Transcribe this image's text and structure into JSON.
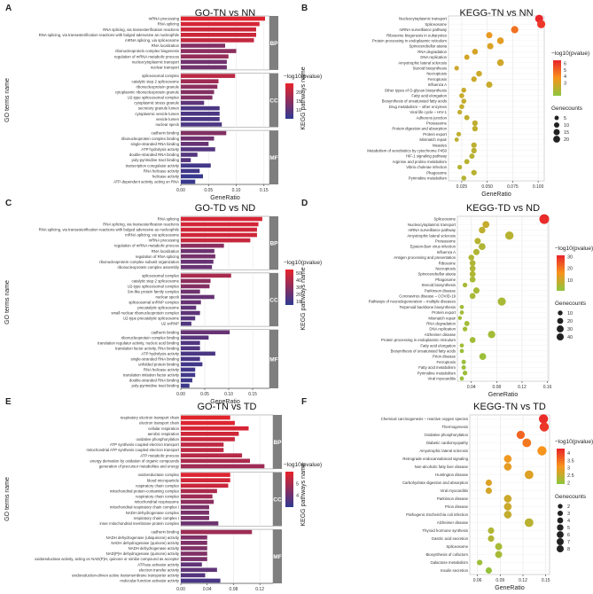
{
  "colors": {
    "bar_high": "#e8232a",
    "bar_low": "#2f3a93",
    "dot_high": "#e8232a",
    "dot_mid": "#f7941d",
    "dot_low": "#8dc63f",
    "strip": "#7f7f7f",
    "grid": "#e6e6e6"
  },
  "chart_data": [
    {
      "panel": "A",
      "type": "bar",
      "title": "GO-TN vs NN",
      "xlabel": "GeneRatio",
      "ylabel": "GO terms name",
      "legend_title": "−log10(pvalue)",
      "xlim": [
        0,
        0.16
      ],
      "xticks": [
        "0.00",
        "0.05",
        "0.10",
        "0.15"
      ],
      "color_range": [
        5,
        25
      ],
      "legend_ticks": [
        10,
        15,
        20
      ],
      "groups": [
        {
          "name": "BP",
          "categories": [
            "mRNA processing",
            "RNA splicing",
            "RNA splicing, via transesterification reactions",
            "RNA splicing, via transesterification reactions with bulged adenosine as nucleophile",
            "mRNA splicing, via spliceosome",
            "RNA localization",
            "ribonucleoprotein complex biogenesis",
            "regulation of mRNA metabolic process",
            "nucleocytoplasmic transport",
            "nuclear transport"
          ],
          "values": [
            0.152,
            0.142,
            0.136,
            0.136,
            0.132,
            0.08,
            0.1,
            0.086,
            0.083,
            0.083
          ],
          "pvalues": [
            24,
            23,
            22,
            22,
            21,
            14,
            15,
            16,
            12,
            12
          ]
        },
        {
          "name": "CC",
          "categories": [
            "spliceosomal complex",
            "catalytic step 2 spliceosome",
            "ribonucleoprotein granule",
            "cytoplasmic ribonucleoprotein granule",
            "U2-type spliceosomal complex",
            "cytoplasmic stress granule",
            "secretory granule lumen",
            "cytoplasmic vesicle lumen",
            "vesicle lumen",
            "nuclear speck"
          ],
          "values": [
            0.098,
            0.068,
            0.066,
            0.06,
            0.057,
            0.042,
            0.07,
            0.07,
            0.07,
            0.074
          ],
          "pvalues": [
            20,
            17,
            15,
            14,
            14,
            10,
            8,
            8,
            8,
            8
          ]
        },
        {
          "name": "MF",
          "categories": [
            "cadherin binding",
            "ribonucleoprotein complex binding",
            "single-stranded RNA binding",
            "ATP hydrolysis activity",
            "double-stranded RNA binding",
            "poly-pyrimidine tract binding",
            "transcription coregulator activity",
            "RNA helicase activity",
            "helicase activity",
            "ATP-dependent activity, acting on RNA"
          ],
          "values": [
            0.082,
            0.06,
            0.05,
            0.062,
            0.03,
            0.018,
            0.054,
            0.034,
            0.04,
            0.026
          ],
          "pvalues": [
            14,
            12,
            11,
            9,
            9,
            9,
            7,
            7,
            6,
            6
          ]
        }
      ]
    },
    {
      "panel": "B",
      "type": "scatter",
      "title": "KEGG-TN vs NN",
      "xlabel": "GeneRatio",
      "ylabel": "KEGG pathways name",
      "legend_title": "−log10(pvalue)",
      "size_title": "Genecounts",
      "xlim": [
        0.012,
        0.106
      ],
      "xticks": [
        "0.025",
        "0.050",
        "0.075",
        "0.100"
      ],
      "color_range": [
        1,
        6.5
      ],
      "legend_ticks": [
        3,
        4,
        5,
        6
      ],
      "size_ticks": [
        5,
        10,
        15,
        20
      ],
      "categories": [
        "Nucleocytoplasmic transport",
        "Spliceosome",
        "mRNA surveillance pathway",
        "Ribosome biogenesis in eukaryotes",
        "Protein processing in endoplasmic reticulum",
        "Spinocerebellar ataxia",
        "RNA degradation",
        "DNA replication",
        "Amyotrophic lateral sclerosis",
        "Steroid biosynthesis",
        "Necroptosis",
        "Ferroptosis",
        "Influenza A",
        "Other types of O-glycan biosynthesis",
        "Fatty acid elongation",
        "Biosynthesis of unsaturated fatty acids",
        "Drug metabolism – other enzymes",
        "Viral life cycle – HIV-1",
        "Adherens junction",
        "Proteasome",
        "Protein digestion and absorption",
        "Protein export",
        "Mismatch repair",
        "Measles",
        "Metabolism of xenobiotics by cytochrome P450",
        "HIF-1 signaling pathway",
        "Arginine and proline metabolism",
        "Vibrio cholerae infection",
        "Phagosome",
        "Pyrimidine metabolism"
      ],
      "x": [
        0.101,
        0.103,
        0.077,
        0.052,
        0.063,
        0.053,
        0.038,
        0.03,
        0.063,
        0.02,
        0.042,
        0.037,
        0.052,
        0.027,
        0.025,
        0.027,
        0.025,
        0.023,
        0.03,
        0.038,
        0.038,
        0.022,
        0.02,
        0.037,
        0.037,
        0.035,
        0.03,
        0.023,
        0.037,
        0.027
      ],
      "sizes": [
        19,
        20,
        15,
        10,
        12,
        10,
        8,
        6,
        12,
        4,
        8,
        7,
        10,
        5,
        5,
        5,
        5,
        4,
        6,
        7,
        7,
        4,
        3,
        7,
        7,
        6,
        6,
        4,
        7,
        5
      ],
      "pvalues": [
        6.4,
        6.0,
        4.6,
        3.4,
        3.2,
        3.0,
        2.9,
        2.8,
        2.7,
        2.7,
        2.6,
        2.6,
        2.5,
        2.5,
        2.5,
        2.4,
        2.4,
        2.4,
        2.3,
        2.3,
        2.3,
        2.3,
        2.2,
        2.2,
        2.2,
        2.1,
        2.1,
        2.1,
        2.1,
        2.0
      ]
    },
    {
      "panel": "C",
      "type": "bar",
      "title": "GO-TD vs ND",
      "xlabel": "GeneRatio",
      "ylabel": "GO terms name",
      "legend_title": "−log10(pvalue)",
      "xlim": [
        0,
        0.185
      ],
      "xticks": [
        "0.00",
        "0.05",
        "0.10",
        "0.15"
      ],
      "color_range": [
        5,
        55
      ],
      "legend_ticks": [
        10,
        20,
        30,
        40,
        50
      ],
      "groups": [
        {
          "name": "BP",
          "categories": [
            "RNA splicing",
            "RNA splicing, via transesterification reactions",
            "RNA splicing, via transesterification reactions with bulged adenosine as nucleophile",
            "mRNA splicing, via spliceosome",
            "mRNA processing",
            "regulation of mRNA metabolic process",
            "RNA localization",
            "regulation of RNA splicing",
            "ribonucleoprotein complex subunit organization",
            "ribonucleoprotein complex assembly"
          ],
          "values": [
            0.17,
            0.162,
            0.159,
            0.159,
            0.145,
            0.09,
            0.07,
            0.072,
            0.068,
            0.065
          ],
          "pvalues": [
            50,
            49,
            48,
            48,
            46,
            30,
            22,
            24,
            20,
            20
          ]
        },
        {
          "name": "CC",
          "categories": [
            "spliceosomal complex",
            "catalytic step 2 spliceosome",
            "U2-type spliceosomal complex",
            "Sm-like protein family complex",
            "nuclear speck",
            "spliceosomal snRNP complex",
            "precatalytic spliceosome",
            "small nuclear ribonucleoprotein complex",
            "U2-type precatalytic spliceosome",
            "U2 snRNP"
          ],
          "values": [
            0.105,
            0.062,
            0.06,
            0.04,
            0.07,
            0.042,
            0.032,
            0.04,
            0.03,
            0.022
          ],
          "pvalues": [
            38,
            30,
            28,
            22,
            20,
            20,
            18,
            18,
            16,
            14
          ]
        },
        {
          "name": "MF",
          "categories": [
            "cadherin binding",
            "ribonucleoprotein complex binding",
            "translation regulator activity, nucleic acid binding",
            "translation factor activity, RNA binding",
            "ATP hydrolysis activity",
            "single-stranded RNA binding",
            "unfolded protein binding",
            "RNA helicase activity",
            "translation initiation factor activity",
            "double-stranded RNA binding",
            "poly-pyrimidine tract binding"
          ],
          "values": [
            0.102,
            0.058,
            0.04,
            0.04,
            0.072,
            0.04,
            0.045,
            0.03,
            0.03,
            0.024,
            0.018
          ],
          "pvalues": [
            20,
            16,
            14,
            14,
            12,
            12,
            10,
            10,
            10,
            9,
            9
          ]
        }
      ]
    },
    {
      "panel": "D",
      "type": "scatter",
      "title": "KEGG-TD vs ND",
      "xlabel": "GeneRatio",
      "ylabel": "KEGG pathways name",
      "legend_title": "−log10(pvalue)",
      "size_title": "Genecounts",
      "xlim": [
        0.018,
        0.162
      ],
      "xticks": [
        "0.04",
        "0.08",
        "0.12",
        "0.16"
      ],
      "color_range": [
        1,
        31
      ],
      "legend_ticks": [
        10,
        20,
        30
      ],
      "size_ticks": [
        10,
        20,
        30,
        40
      ],
      "categories": [
        "Spliceosome",
        "Nucleocytoplasmic transport",
        "mRNA surveillance pathway",
        "Amyotrophic lateral sclerosis",
        "Proteasome",
        "Epstein-Barr virus infection",
        "Influenza A",
        "Antigen processing and presentation",
        "Ribosome",
        "Necroptosis",
        "Spinocerebellar ataxia",
        "Phagosome",
        "Steroid biosynthesis",
        "Parkinson disease",
        "Coronavirus disease – COVID-19",
        "Pathways of neurodegeneration – multiple diseases",
        "Terpenoid backbone biosynthesis",
        "Protein export",
        "Mismatch repair",
        "RNA degradation",
        "DNA replication",
        "Alzheimer disease",
        "Protein processing in endoplasmic reticulum",
        "Fatty acid elongation",
        "Biosynthesis of unsaturated fatty acids",
        "Prion disease",
        "Ferroptosis",
        "Fatty acid metabolism",
        "Pyrimidine metabolism",
        "Viral myocarditis"
      ],
      "x": [
        0.155,
        0.063,
        0.057,
        0.1,
        0.05,
        0.057,
        0.048,
        0.04,
        0.042,
        0.042,
        0.042,
        0.042,
        0.03,
        0.048,
        0.042,
        0.088,
        0.025,
        0.025,
        0.022,
        0.033,
        0.03,
        0.072,
        0.042,
        0.025,
        0.025,
        0.058,
        0.028,
        0.028,
        0.03,
        0.025
      ],
      "sizes": [
        44,
        18,
        16,
        30,
        14,
        18,
        14,
        11,
        12,
        12,
        12,
        12,
        6,
        14,
        12,
        28,
        4,
        4,
        3,
        8,
        6,
        22,
        12,
        4,
        4,
        18,
        5,
        5,
        6,
        4
      ],
      "pvalues": [
        30,
        9,
        8,
        7,
        7,
        6,
        6,
        6,
        6,
        6,
        6,
        5,
        5,
        5,
        5,
        5,
        4,
        4,
        4,
        4,
        4,
        4,
        4,
        4,
        3,
        3,
        3,
        3,
        3,
        3
      ]
    },
    {
      "panel": "E",
      "type": "bar",
      "title": "GO-TN vs TD",
      "xlabel": "GeneRatio",
      "ylabel": "GO terms name",
      "legend_title": "−log10(pvalue)",
      "xlim": [
        0,
        0.14
      ],
      "xticks": [
        "0.00",
        "0.04",
        "0.08",
        "0.12"
      ],
      "color_range": [
        3,
        6
      ],
      "legend_ticks": [
        4,
        5
      ],
      "groups": [
        {
          "name": "BP",
          "categories": [
            "respiratory electron transport chain",
            "electron transport chain",
            "cellular respiration",
            "aerobic respiration",
            "oxidative phosphorylation",
            "ATP synthesis coupled electron transport",
            "mitochondrial ATP synthesis coupled electron transport",
            "ATP metabolic process",
            "energy derivation by oxidation of organic compounds",
            "generation of precursor metabolites and energy"
          ],
          "values": [
            0.075,
            0.082,
            0.103,
            0.088,
            0.082,
            0.065,
            0.065,
            0.093,
            0.105,
            0.127
          ],
          "pvalues": [
            5.9,
            5.8,
            5.7,
            5.6,
            5.5,
            5.3,
            5.3,
            5.2,
            5.0,
            4.8
          ]
        },
        {
          "name": "CC",
          "categories": [
            "oxidoreductase complex",
            "blood microparticle",
            "respiratory chain complex",
            "mitochondrial protein-containing complex",
            "respiratory chain complex",
            "mitochondrial respirasome",
            "mitochondrial respiratory chain complex I",
            "NADH dehydrogenase complex",
            "respiratory chain complex I",
            "inner mitochondrial membrane protein complex"
          ],
          "values": [
            0.075,
            0.075,
            0.072,
            0.055,
            0.048,
            0.05,
            0.043,
            0.043,
            0.043,
            0.057
          ],
          "pvalues": [
            5.8,
            5.6,
            5.5,
            5.0,
            4.8,
            4.5,
            4.2,
            4.2,
            4.2,
            4.0
          ]
        },
        {
          "name": "MF",
          "categories": [
            "cadherin binding",
            "NADH dehydrogenase (ubiquinone) activity",
            "NADH dehydrogenase (quinone) activity",
            "NADH dehydrogenase activity",
            "NAD(P)H dehydrogenase (quinone) activity",
            "oxidoreductase activity, acting on NAD(P)H, quinone or similar compound as acceptor",
            "ATPase activator activity",
            "electron transfer activity",
            "oxidoreduction-driven active transmembrane transporter activity",
            "molecular function activator activity"
          ],
          "values": [
            0.108,
            0.04,
            0.04,
            0.04,
            0.04,
            0.04,
            0.032,
            0.055,
            0.037,
            0.06
          ],
          "pvalues": [
            4.8,
            4.3,
            4.3,
            4.3,
            4.3,
            4.2,
            3.8,
            3.8,
            3.6,
            3.4
          ]
        }
      ]
    },
    {
      "panel": "F",
      "type": "scatter",
      "title": "KEGG-TN vs TD",
      "xlabel": "GeneRatio",
      "ylabel": "KEGG pathways name",
      "legend_title": "−log10(pvalue)",
      "size_title": "Genecounts",
      "xlim": [
        0.05,
        0.155
      ],
      "xticks": [
        "0.06",
        "0.09",
        "0.12",
        "0.15"
      ],
      "color_range": [
        1.9,
        4.3
      ],
      "legend_ticks": [
        2.0,
        2.5,
        3.0,
        3.5,
        4.0
      ],
      "size_ticks": [
        2,
        3,
        4,
        5,
        6,
        7,
        8
      ],
      "categories": [
        "Chemical carcinogenesis – reactive oxygen species",
        "Thermogenesis",
        "Oxidative phosphorylation",
        "Diabetic cardiomyopathy",
        "Amyotrophic lateral sclerosis",
        "Retrograde endocannabinoid signaling",
        "Non-alcoholic fatty liver disease",
        "Huntington disease",
        "Carbohydrate digestion and absorption",
        "Viral myocarditis",
        "Parkinson disease",
        "Prion disease",
        "Pathogenic Escherichia coli infection",
        "Alzheimer disease",
        "Thyroid hormone synthesis",
        "Gastric acid secretion",
        "Spliceosome",
        "Biosynthesis of cofactors",
        "Galactose metabolism",
        "Insulin secretion"
      ],
      "x": [
        0.147,
        0.148,
        0.117,
        0.125,
        0.145,
        0.1,
        0.1,
        0.128,
        0.075,
        0.075,
        0.1,
        0.1,
        0.1,
        0.128,
        0.078,
        0.078,
        0.088,
        0.088,
        0.063,
        0.075
      ],
      "sizes": [
        8,
        8,
        6,
        7,
        8,
        5,
        5,
        7,
        3,
        3,
        5,
        5,
        5,
        7,
        3,
        3,
        4,
        4,
        2,
        3
      ],
      "pvalues": [
        4.2,
        4.1,
        3.6,
        3.4,
        3.1,
        3.0,
        2.9,
        2.8,
        2.8,
        2.7,
        2.6,
        2.6,
        2.5,
        2.4,
        2.3,
        2.3,
        2.2,
        2.2,
        2.1,
        2.0
      ]
    }
  ]
}
